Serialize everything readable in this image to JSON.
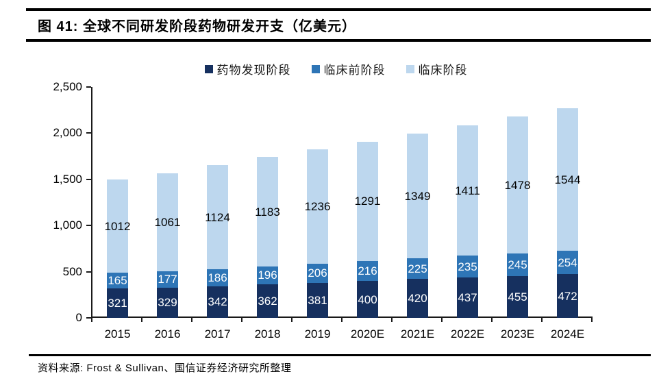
{
  "header": {
    "figure_label": "图 41:",
    "title": "全球不同研发阶段药物研发开支（亿美元）"
  },
  "chart_data": {
    "type": "bar",
    "stacked": true,
    "title": "全球不同研发阶段药物研发开支（亿美元）",
    "categories": [
      "2015",
      "2016",
      "2017",
      "2018",
      "2019",
      "2020E",
      "2021E",
      "2022E",
      "2023E",
      "2024E"
    ],
    "series": [
      {
        "name": "药物发现阶段",
        "color": "#16305f",
        "label_color": "#ffffff",
        "values": [
          321,
          329,
          342,
          362,
          381,
          400,
          420,
          437,
          455,
          472
        ]
      },
      {
        "name": "临床前阶段",
        "color": "#2e75b6",
        "label_color": "#ffffff",
        "values": [
          165,
          177,
          186,
          196,
          206,
          216,
          225,
          235,
          245,
          254
        ]
      },
      {
        "name": "临床阶段",
        "color": "#bdd7ee",
        "label_color": "#000000",
        "values": [
          1012,
          1061,
          1124,
          1183,
          1236,
          1291,
          1349,
          1411,
          1478,
          1544
        ]
      }
    ],
    "ylim": [
      0,
      2500
    ],
    "ytick_step": 500,
    "ytick_labels": [
      "0",
      "500",
      "1,000",
      "1,500",
      "2,000",
      "2,500"
    ],
    "grid": false,
    "legend_position": "top",
    "xlabel": "",
    "ylabel": ""
  },
  "footer": {
    "source": "资料来源: Frost & Sullivan、国信证券经济研究所整理"
  }
}
